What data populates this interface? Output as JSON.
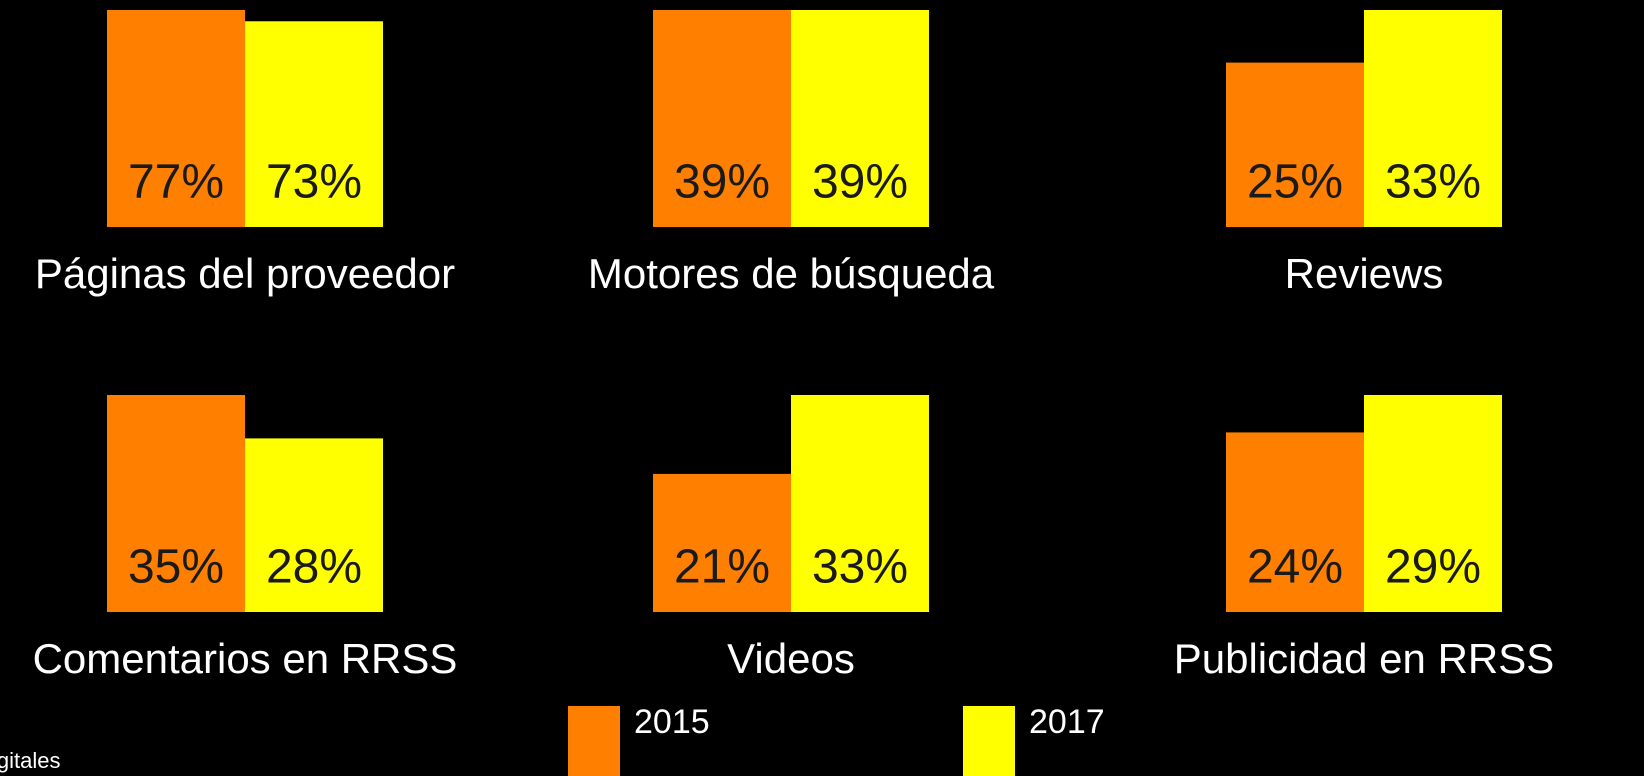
{
  "chart_data": [
    {
      "type": "bar",
      "title": "Páginas del proveedor",
      "ylim": [
        0,
        77
      ],
      "series": [
        {
          "name": "2015",
          "color": "#ff8000",
          "values": [
            77
          ],
          "value_labels": [
            "77%"
          ]
        },
        {
          "name": "2017",
          "color": "#ffff00",
          "values": [
            73
          ],
          "value_labels": [
            "73%"
          ]
        }
      ]
    },
    {
      "type": "bar",
      "title": "Motores de búsqueda",
      "ylim": [
        0,
        39
      ],
      "series": [
        {
          "name": "2015",
          "color": "#ff8000",
          "values": [
            39
          ],
          "value_labels": [
            "39%"
          ]
        },
        {
          "name": "2017",
          "color": "#ffff00",
          "values": [
            39
          ],
          "value_labels": [
            "39%"
          ]
        }
      ]
    },
    {
      "type": "bar",
      "title": "Reviews",
      "ylim": [
        0,
        33
      ],
      "series": [
        {
          "name": "2015",
          "color": "#ff8000",
          "values": [
            25
          ],
          "value_labels": [
            "25%"
          ]
        },
        {
          "name": "2017",
          "color": "#ffff00",
          "values": [
            33
          ],
          "value_labels": [
            "33%"
          ]
        }
      ]
    },
    {
      "type": "bar",
      "title": "Comentarios en RRSS",
      "ylim": [
        0,
        35
      ],
      "series": [
        {
          "name": "2015",
          "color": "#ff8000",
          "values": [
            35
          ],
          "value_labels": [
            "35%"
          ]
        },
        {
          "name": "2017",
          "color": "#ffff00",
          "values": [
            28
          ],
          "value_labels": [
            "28%"
          ]
        }
      ]
    },
    {
      "type": "bar",
      "title": "Videos",
      "ylim": [
        0,
        33
      ],
      "series": [
        {
          "name": "2015",
          "color": "#ff8000",
          "values": [
            21
          ],
          "value_labels": [
            "21%"
          ]
        },
        {
          "name": "2017",
          "color": "#ffff00",
          "values": [
            33
          ],
          "value_labels": [
            "33%"
          ]
        }
      ]
    },
    {
      "type": "bar",
      "title": "Publicidad en RRSS",
      "ylim": [
        0,
        29
      ],
      "series": [
        {
          "name": "2015",
          "color": "#ff8000",
          "values": [
            24
          ],
          "value_labels": [
            "24%"
          ]
        },
        {
          "name": "2017",
          "color": "#ffff00",
          "values": [
            29
          ],
          "value_labels": [
            "29%"
          ]
        }
      ]
    }
  ],
  "footer_note": "igitales"
}
